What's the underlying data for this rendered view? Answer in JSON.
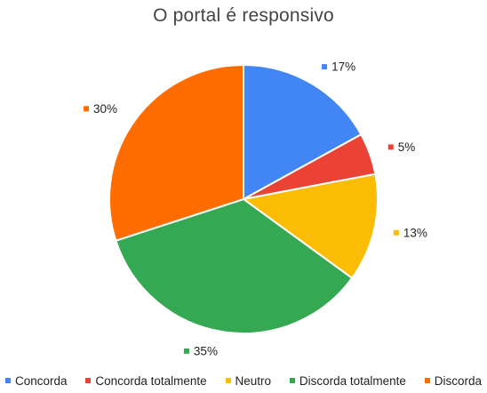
{
  "chart_data": {
    "type": "pie",
    "title": "O portal é responsivo",
    "legend_position": "bottom",
    "categories": [
      "Concorda",
      "Concorda totalmente",
      "Neutro",
      "Discorda totalmente",
      "Discorda"
    ],
    "values": [
      17,
      5,
      13,
      35,
      30
    ],
    "value_labels": [
      "17%",
      "5%",
      "13%",
      "35%",
      "30%"
    ],
    "colors": [
      "#4285f4",
      "#ea4335",
      "#fbbc04",
      "#34a853",
      "#ff6d01"
    ]
  }
}
